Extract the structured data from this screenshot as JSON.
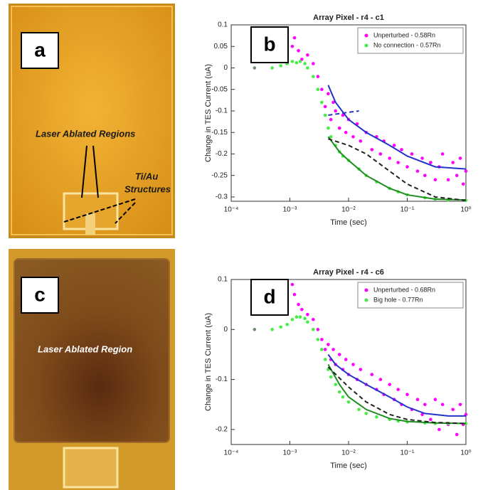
{
  "panel_labels": [
    "a",
    "b",
    "c",
    "d"
  ],
  "photo_annotations": [
    "Laser Ablated Regions",
    "Ti/Au",
    "Structures",
    "Laser Ablated Region"
  ],
  "chart_data": [
    {
      "type": "scatter",
      "title": "Array Pixel - r4 - c1",
      "x_label": "Time (sec)",
      "y_label": "Change in TES Current (uA)",
      "xscale": "log",
      "xlim": [
        0.0001,
        1
      ],
      "ylim": [
        -0.31,
        0.1
      ],
      "xticks": [
        {
          "value": 0.0001,
          "label": "10⁻⁴"
        },
        {
          "value": 0.001,
          "label": "10⁻³"
        },
        {
          "value": 0.01,
          "label": "10⁻²"
        },
        {
          "value": 0.1,
          "label": "10⁻¹"
        },
        {
          "value": 1,
          "label": "10⁰"
        }
      ],
      "yticks": [
        -0.3,
        -0.25,
        -0.2,
        -0.15,
        -0.1,
        -0.05,
        0,
        0.05,
        0.1
      ],
      "legend": "upper right",
      "series": [
        {
          "name": "Unperturbed - 0.58Rn",
          "color": "#ff00ff",
          "mode": "markers",
          "x": [
            0.0011,
            0.0012,
            0.0014,
            0.0016,
            0.002,
            0.0025,
            0.003,
            0.0035,
            0.004,
            0.0045,
            0.005,
            0.0055,
            0.006,
            0.007,
            0.008,
            0.009,
            0.01,
            0.012,
            0.014,
            0.016,
            0.02,
            0.025,
            0.03,
            0.035,
            0.04,
            0.05,
            0.06,
            0.07,
            0.08,
            0.1,
            0.12,
            0.15,
            0.18,
            0.2,
            0.25,
            0.3,
            0.35,
            0.4,
            0.5,
            0.6,
            0.7,
            0.8,
            0.9,
            1
          ],
          "values": [
            0.05,
            0.07,
            0.04,
            0.02,
            0.03,
            0.01,
            -0.02,
            -0.05,
            -0.09,
            -0.06,
            -0.12,
            -0.08,
            -0.1,
            -0.14,
            -0.11,
            -0.15,
            -0.12,
            -0.16,
            -0.13,
            -0.17,
            -0.15,
            -0.19,
            -0.16,
            -0.2,
            -0.17,
            -0.21,
            -0.18,
            -0.22,
            -0.19,
            -0.23,
            -0.2,
            -0.24,
            -0.21,
            -0.25,
            -0.22,
            -0.26,
            -0.23,
            -0.2,
            -0.26,
            -0.22,
            -0.25,
            -0.21,
            -0.27,
            -0.24
          ]
        },
        {
          "name": "No connection - 0.57Rn",
          "color": "#44ee44",
          "mode": "markers",
          "x": [
            0.0005,
            0.0007,
            0.0009,
            0.0011,
            0.0013,
            0.0015,
            0.0018,
            0.002,
            0.0025,
            0.003,
            0.0035,
            0.004,
            0.0045,
            0.005,
            0.006,
            0.007,
            0.008,
            0.01,
            0.015,
            0.02,
            0.03,
            0.05,
            0.07,
            0.1,
            0.2,
            0.3,
            0.5,
            1
          ],
          "values": [
            0,
            0.005,
            0.01,
            0.015,
            0.012,
            0.015,
            0.01,
            0,
            -0.02,
            -0.05,
            -0.08,
            -0.11,
            -0.14,
            -0.16,
            -0.18,
            -0.195,
            -0.205,
            -0.215,
            -0.235,
            -0.25,
            -0.265,
            -0.28,
            -0.288,
            -0.295,
            -0.302,
            -0.305,
            -0.307,
            -0.308
          ]
        },
        {
          "color": "#6f8f6f",
          "mode": "markers",
          "x": [
            0.00025
          ],
          "values": [
            0
          ]
        },
        {
          "color": "#1e8c1e",
          "mode": "line",
          "x": [
            0.0045,
            0.007,
            0.01,
            0.02,
            0.05,
            0.1,
            0.3,
            1
          ],
          "values": [
            -0.16,
            -0.195,
            -0.215,
            -0.25,
            -0.28,
            -0.295,
            -0.305,
            -0.307
          ]
        },
        {
          "color": "#222222",
          "mode": "line",
          "dash": true,
          "x": [
            0.0045,
            0.01,
            0.02,
            0.05,
            0.1,
            0.3,
            1
          ],
          "values": [
            -0.165,
            -0.18,
            -0.2,
            -0.24,
            -0.27,
            -0.3,
            -0.308
          ]
        },
        {
          "color": "#2233cc",
          "mode": "line",
          "x": [
            0.0045,
            0.006,
            0.01,
            0.02,
            0.05,
            0.1,
            0.3,
            1
          ],
          "values": [
            -0.04,
            -0.08,
            -0.12,
            -0.15,
            -0.18,
            -0.205,
            -0.23,
            -0.235
          ]
        },
        {
          "color": "#2233cc",
          "mode": "line",
          "dash": true,
          "x": [
            0.0045,
            0.008,
            0.015
          ],
          "values": [
            -0.11,
            -0.105,
            -0.1
          ]
        }
      ]
    },
    {
      "type": "scatter",
      "title": "Array Pixel - r4 - c6",
      "x_label": "Time (sec)",
      "y_label": "Change in TES Current (uA)",
      "xscale": "log",
      "xlim": [
        0.0001,
        1
      ],
      "ylim": [
        -0.23,
        0.1
      ],
      "xticks": [
        {
          "value": 0.0001,
          "label": "10⁻⁴"
        },
        {
          "value": 0.001,
          "label": "10⁻³"
        },
        {
          "value": 0.01,
          "label": "10⁻²"
        },
        {
          "value": 0.1,
          "label": "10⁻¹"
        },
        {
          "value": 1,
          "label": "10⁰"
        }
      ],
      "yticks": [
        -0.2,
        -0.1,
        0,
        0.1
      ],
      "legend": "upper right",
      "series": [
        {
          "name": "Unperturbed - 0.68Rn",
          "color": "#ff00ff",
          "mode": "markers",
          "x": [
            0.0011,
            0.0012,
            0.0014,
            0.0016,
            0.002,
            0.0025,
            0.003,
            0.0035,
            0.004,
            0.0045,
            0.005,
            0.0055,
            0.006,
            0.007,
            0.008,
            0.009,
            0.01,
            0.012,
            0.014,
            0.016,
            0.02,
            0.025,
            0.03,
            0.035,
            0.04,
            0.05,
            0.06,
            0.07,
            0.08,
            0.1,
            0.12,
            0.15,
            0.18,
            0.2,
            0.25,
            0.3,
            0.35,
            0.4,
            0.5,
            0.6,
            0.7,
            0.8,
            0.9,
            1
          ],
          "values": [
            0.09,
            0.07,
            0.05,
            0.04,
            0.03,
            0.02,
            0,
            -0.02,
            -0.04,
            -0.03,
            -0.06,
            -0.04,
            -0.07,
            -0.05,
            -0.08,
            -0.06,
            -0.09,
            -0.07,
            -0.1,
            -0.08,
            -0.11,
            -0.09,
            -0.12,
            -0.1,
            -0.13,
            -0.11,
            -0.14,
            -0.12,
            -0.15,
            -0.13,
            -0.16,
            -0.14,
            -0.17,
            -0.15,
            -0.18,
            -0.14,
            -0.2,
            -0.15,
            -0.19,
            -0.16,
            -0.21,
            -0.15,
            -0.19,
            -0.17
          ]
        },
        {
          "name": "Big hole - 0.77Rn",
          "color": "#44ee44",
          "mode": "markers",
          "x": [
            0.0005,
            0.0007,
            0.0009,
            0.0011,
            0.0013,
            0.0015,
            0.0018,
            0.002,
            0.0025,
            0.003,
            0.0035,
            0.004,
            0.0045,
            0.005,
            0.006,
            0.007,
            0.008,
            0.01,
            0.015,
            0.02,
            0.03,
            0.05,
            0.07,
            0.1,
            0.2,
            0.3,
            0.5,
            1
          ],
          "values": [
            0,
            0.005,
            0.01,
            0.02,
            0.025,
            0.025,
            0.022,
            0.015,
            0,
            -0.02,
            -0.04,
            -0.06,
            -0.08,
            -0.095,
            -0.11,
            -0.125,
            -0.135,
            -0.145,
            -0.16,
            -0.168,
            -0.175,
            -0.18,
            -0.183,
            -0.185,
            -0.187,
            -0.188,
            -0.188,
            -0.188
          ]
        },
        {
          "color": "#6f8f6f",
          "mode": "markers",
          "x": [
            0.00025
          ],
          "values": [
            0
          ]
        },
        {
          "color": "#1e8c1e",
          "mode": "line",
          "x": [
            0.0045,
            0.007,
            0.01,
            0.02,
            0.05,
            0.1,
            0.3,
            1
          ],
          "values": [
            -0.07,
            -0.11,
            -0.135,
            -0.16,
            -0.178,
            -0.184,
            -0.187,
            -0.188
          ]
        },
        {
          "color": "#222222",
          "mode": "line",
          "dash": true,
          "x": [
            0.0045,
            0.01,
            0.02,
            0.05,
            0.1,
            0.3,
            1
          ],
          "values": [
            -0.075,
            -0.115,
            -0.145,
            -0.17,
            -0.18,
            -0.186,
            -0.188
          ]
        },
        {
          "color": "#2233cc",
          "mode": "line",
          "x": [
            0.0045,
            0.006,
            0.01,
            0.02,
            0.05,
            0.1,
            0.2,
            0.5,
            1
          ],
          "values": [
            -0.05,
            -0.07,
            -0.09,
            -0.11,
            -0.135,
            -0.155,
            -0.168,
            -0.173,
            -0.173
          ]
        }
      ]
    }
  ]
}
